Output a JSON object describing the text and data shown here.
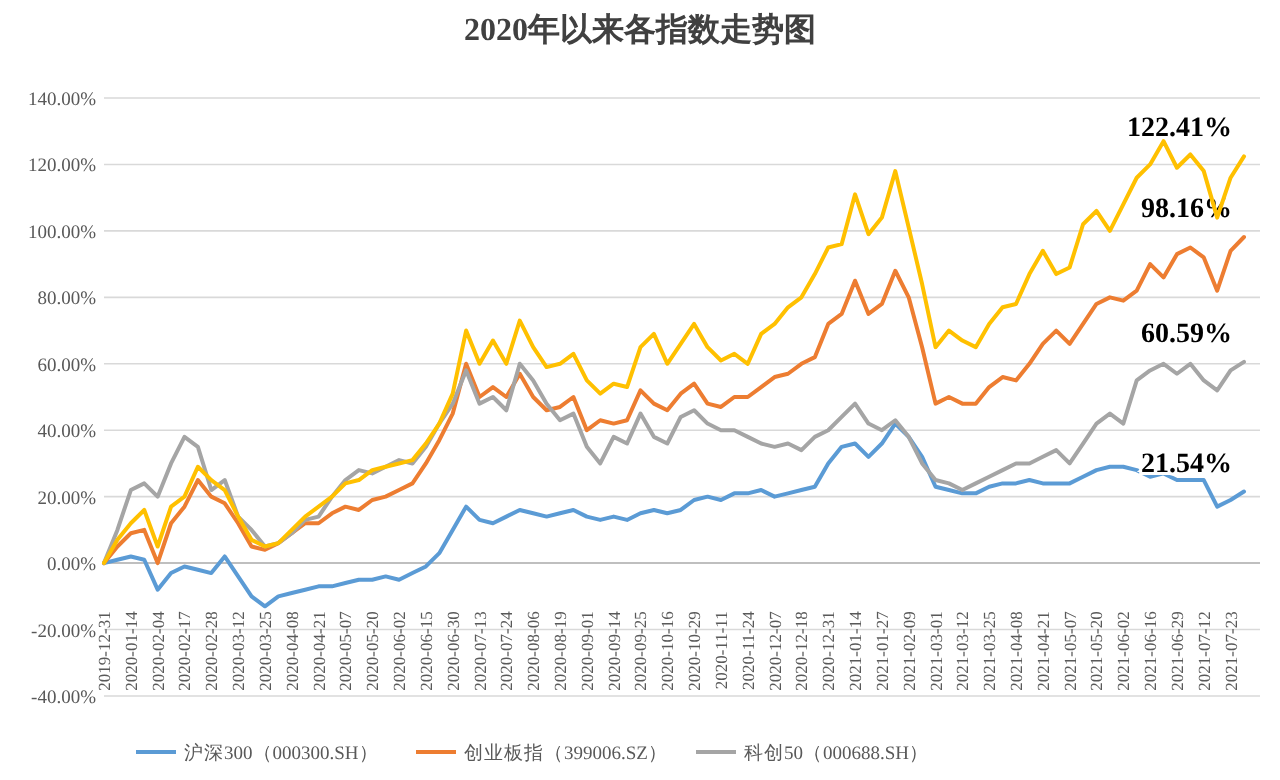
{
  "chart_data": {
    "type": "line",
    "title": "2020年以来各指数走势图",
    "categories": [
      "2019-12-31",
      null,
      "2020-01-14",
      null,
      "2020-02-04",
      null,
      "2020-02-17",
      null,
      "2020-02-28",
      null,
      "2020-03-12",
      null,
      "2020-03-25",
      null,
      "2020-04-08",
      null,
      "2020-04-21",
      null,
      "2020-05-07",
      null,
      "2020-05-20",
      null,
      "2020-06-02",
      null,
      "2020-06-15",
      null,
      "2020-06-30",
      null,
      "2020-07-13",
      null,
      "2020-07-24",
      null,
      "2020-08-06",
      null,
      "2020-08-19",
      null,
      "2020-09-01",
      null,
      "2020-09-14",
      null,
      "2020-09-25",
      null,
      "2020-10-16",
      null,
      "2020-10-29",
      null,
      "2020-11-11",
      null,
      "2020-11-24",
      null,
      "2020-12-07",
      null,
      "2020-12-18",
      null,
      "2020-12-31",
      null,
      "2021-01-14",
      null,
      "2021-01-27",
      null,
      "2021-02-09",
      null,
      "2021-03-01",
      null,
      "2021-03-12",
      null,
      "2021-03-25",
      null,
      "2021-04-08",
      null,
      "2021-04-21",
      null,
      "2021-05-07",
      null,
      "2021-05-20",
      null,
      "2021-06-02",
      null,
      "2021-06-16",
      null,
      "2021-06-29",
      null,
      "2021-07-12",
      null,
      "2021-07-23",
      null
    ],
    "series": [
      {
        "name": "沪深300（000300.SH）",
        "color": "#5b9bd5",
        "values": [
          0,
          1,
          2,
          1,
          -8,
          -3,
          -1,
          -2,
          -3,
          2,
          -4,
          -10,
          -13,
          -10,
          -9,
          -8,
          -7,
          -7,
          -6,
          -5,
          -5,
          -4,
          -5,
          -3,
          -1,
          3,
          10,
          17,
          13,
          12,
          14,
          16,
          15,
          14,
          15,
          16,
          14,
          13,
          14,
          13,
          15,
          16,
          15,
          16,
          19,
          20,
          19,
          21,
          21,
          22,
          20,
          21,
          22,
          23,
          30,
          35,
          36,
          32,
          36,
          42,
          38,
          32,
          23,
          22,
          21,
          21,
          23,
          24,
          24,
          25,
          24,
          24,
          24,
          26,
          28,
          29,
          29,
          28,
          26,
          27,
          25,
          25,
          25,
          17,
          19,
          21.54
        ],
        "value_labels": [
          null,
          null,
          null,
          null,
          null,
          null,
          null,
          null,
          null,
          null,
          null,
          null,
          null,
          null,
          null,
          null,
          null,
          null,
          null,
          null,
          null,
          null,
          null,
          null,
          null,
          null,
          null,
          null,
          null,
          null,
          null,
          null,
          null,
          null,
          null,
          null,
          null,
          null,
          null,
          null,
          null,
          null,
          null,
          null,
          null,
          null,
          null,
          null,
          null,
          null,
          null,
          null,
          null,
          null,
          null,
          null,
          null,
          null,
          null,
          null,
          null,
          null,
          null,
          null,
          null,
          null,
          null,
          null,
          null,
          null,
          null,
          null,
          null,
          null,
          null,
          null,
          null,
          null,
          null,
          null,
          null,
          null,
          null,
          null,
          null,
          "21.54%"
        ]
      },
      {
        "name": "创业板指（399006.SZ）",
        "color": "#ed7d31",
        "values": [
          0,
          5,
          9,
          10,
          0,
          12,
          17,
          25,
          20,
          18,
          12,
          5,
          4,
          6,
          9,
          12,
          12,
          15,
          17,
          16,
          19,
          20,
          22,
          24,
          30,
          37,
          45,
          60,
          50,
          53,
          50,
          57,
          50,
          46,
          47,
          50,
          40,
          43,
          42,
          43,
          52,
          48,
          46,
          51,
          54,
          48,
          47,
          50,
          50,
          53,
          56,
          57,
          60,
          62,
          72,
          75,
          85,
          75,
          78,
          88,
          80,
          65,
          48,
          50,
          48,
          48,
          53,
          56,
          55,
          60,
          66,
          70,
          66,
          72,
          78,
          80,
          79,
          82,
          90,
          86,
          93,
          95,
          92,
          82,
          94,
          98.16
        ],
        "value_labels": [
          null,
          null,
          null,
          null,
          null,
          null,
          null,
          null,
          null,
          null,
          null,
          null,
          null,
          null,
          null,
          null,
          null,
          null,
          null,
          null,
          null,
          null,
          null,
          null,
          null,
          null,
          null,
          null,
          null,
          null,
          null,
          null,
          null,
          null,
          null,
          null,
          null,
          null,
          null,
          null,
          null,
          null,
          null,
          null,
          null,
          null,
          null,
          null,
          null,
          null,
          null,
          null,
          null,
          null,
          null,
          null,
          null,
          null,
          null,
          null,
          null,
          null,
          null,
          null,
          null,
          null,
          null,
          null,
          null,
          null,
          null,
          null,
          null,
          null,
          null,
          null,
          null,
          null,
          null,
          null,
          null,
          null,
          null,
          null,
          null,
          "98.16%"
        ]
      },
      {
        "name": "科创50（000688.SH）",
        "color": "#a5a5a5",
        "values": [
          0,
          10,
          22,
          24,
          20,
          30,
          38,
          35,
          22,
          25,
          14,
          10,
          5,
          6,
          9,
          13,
          14,
          20,
          25,
          28,
          27,
          29,
          31,
          30,
          35,
          42,
          48,
          58,
          48,
          50,
          46,
          60,
          55,
          48,
          43,
          45,
          35,
          30,
          38,
          36,
          45,
          38,
          36,
          44,
          46,
          42,
          40,
          40,
          38,
          36,
          35,
          36,
          34,
          38,
          40,
          44,
          48,
          42,
          40,
          43,
          38,
          30,
          25,
          24,
          22,
          24,
          26,
          28,
          30,
          30,
          32,
          34,
          30,
          36,
          42,
          45,
          42,
          55,
          58,
          60,
          57,
          60,
          55,
          52,
          58,
          60.59
        ],
        "value_labels": [
          null,
          null,
          null,
          null,
          null,
          null,
          null,
          null,
          null,
          null,
          null,
          null,
          null,
          null,
          null,
          null,
          null,
          null,
          null,
          null,
          null,
          null,
          null,
          null,
          null,
          null,
          null,
          null,
          null,
          null,
          null,
          null,
          null,
          null,
          null,
          null,
          null,
          null,
          null,
          null,
          null,
          null,
          null,
          null,
          null,
          null,
          null,
          null,
          null,
          null,
          null,
          null,
          null,
          null,
          null,
          null,
          null,
          null,
          null,
          null,
          null,
          null,
          null,
          null,
          null,
          null,
          null,
          null,
          null,
          null,
          null,
          null,
          null,
          null,
          null,
          null,
          null,
          null,
          null,
          null,
          null,
          null,
          null,
          null,
          null,
          "60.59%"
        ]
      },
      {
        "color": "#ffc000",
        "values": [
          0,
          7,
          12,
          16,
          5,
          17,
          20,
          29,
          25,
          22,
          14,
          7,
          5,
          6,
          10,
          14,
          17,
          20,
          24,
          25,
          28,
          29,
          30,
          31,
          36,
          42,
          51,
          70,
          60,
          67,
          60,
          73,
          65,
          59,
          60,
          63,
          55,
          51,
          54,
          53,
          65,
          69,
          60,
          66,
          72,
          65,
          61,
          63,
          60,
          69,
          72,
          77,
          80,
          87,
          95,
          96,
          111,
          99,
          104,
          118,
          101,
          84,
          65,
          70,
          67,
          65,
          72,
          77,
          78,
          87,
          94,
          87,
          89,
          102,
          106,
          100,
          108,
          116,
          120,
          127,
          119,
          123,
          118,
          104,
          116,
          122.41
        ],
        "value_labels": [
          null,
          null,
          null,
          null,
          null,
          null,
          null,
          null,
          null,
          null,
          null,
          null,
          null,
          null,
          null,
          null,
          null,
          null,
          null,
          null,
          null,
          null,
          null,
          null,
          null,
          null,
          null,
          null,
          null,
          null,
          null,
          null,
          null,
          null,
          null,
          null,
          null,
          null,
          null,
          null,
          null,
          null,
          null,
          null,
          null,
          null,
          null,
          null,
          null,
          null,
          null,
          null,
          null,
          null,
          null,
          null,
          null,
          null,
          null,
          null,
          null,
          null,
          null,
          null,
          null,
          null,
          null,
          null,
          null,
          null,
          null,
          null,
          null,
          null,
          null,
          null,
          null,
          null,
          null,
          null,
          null,
          null,
          null,
          null,
          null,
          "122.41%"
        ]
      }
    ],
    "ylim": [
      -40,
      140
    ],
    "yticks": [
      {
        "value": -40,
        "label": "-40.00%"
      },
      {
        "value": -20,
        "label": "-20.00%"
      },
      {
        "value": 0,
        "label": "0.00%"
      },
      {
        "value": 20,
        "label": "20.00%"
      },
      {
        "value": 40,
        "label": "40.00%"
      },
      {
        "value": 60,
        "label": "60.00%"
      },
      {
        "value": 80,
        "label": "80.00%"
      },
      {
        "value": 100,
        "label": "100.00%"
      },
      {
        "value": 120,
        "label": "120.00%"
      },
      {
        "value": 140,
        "label": "140.00%"
      }
    ],
    "grid": "y",
    "legend": "bottom",
    "marker": "none",
    "line_style": "solid"
  }
}
